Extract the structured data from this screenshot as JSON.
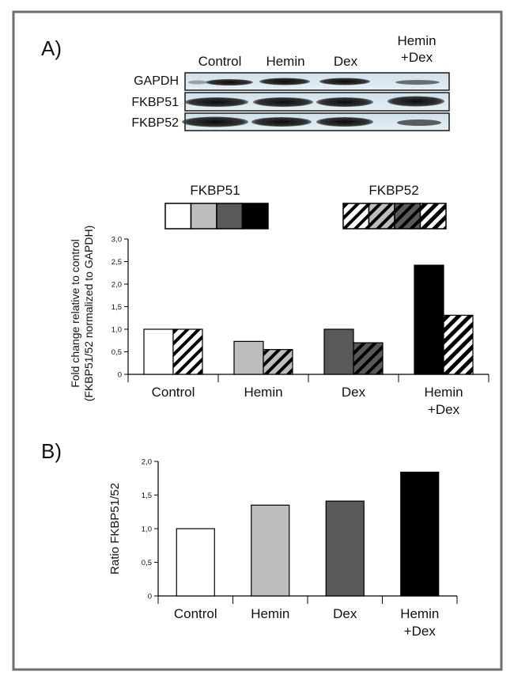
{
  "panels": {
    "a_label": "A)",
    "b_label": "B)"
  },
  "blot": {
    "lanes": [
      {
        "label": "Control"
      },
      {
        "label": "Hemin"
      },
      {
        "label": "Dex"
      },
      {
        "label_line1": "Hemin",
        "label_line2": "+Dex"
      }
    ],
    "rows": [
      "GAPDH",
      "FKBP51",
      "FKBP52"
    ]
  },
  "legend": {
    "fkbp51_title": "FKBP51",
    "fkbp52_title": "FKBP52",
    "colors": [
      "#ffffff",
      "#bdbdbd",
      "#595959",
      "#000000"
    ]
  },
  "chart_data": [
    {
      "type": "bar",
      "panel": "A",
      "categories": [
        "Control",
        "Hemin",
        "Dex",
        "Hemin +Dex"
      ],
      "category_lines": [
        [
          "Control"
        ],
        [
          "Hemin"
        ],
        [
          "Dex"
        ],
        [
          "Hemin",
          "+Dex"
        ]
      ],
      "series": [
        {
          "name": "FKBP51",
          "values": [
            1.0,
            0.73,
            1.0,
            2.42
          ],
          "pattern": "solid"
        },
        {
          "name": "FKBP52",
          "values": [
            1.0,
            0.55,
            0.7,
            1.31
          ],
          "pattern": "hatched"
        }
      ],
      "bar_colors": [
        "#ffffff",
        "#bdbdbd",
        "#595959",
        "#000000"
      ],
      "ylabel_line1": "Fold change relative to control",
      "ylabel_line2": "(FKBP51/52 normalized to GAPDH)",
      "ylim": [
        0,
        3.0
      ],
      "yticks": [
        "0",
        "0,5",
        "1,0",
        "1,5",
        "2,0",
        "2,5",
        "3,0"
      ],
      "ytick_values": [
        0,
        0.5,
        1.0,
        1.5,
        2.0,
        2.5,
        3.0
      ]
    },
    {
      "type": "bar",
      "panel": "B",
      "categories": [
        "Control",
        "Hemin",
        "Dex",
        "Hemin +Dex"
      ],
      "category_lines": [
        [
          "Control"
        ],
        [
          "Hemin"
        ],
        [
          "Dex"
        ],
        [
          "Hemin",
          "+Dex"
        ]
      ],
      "series": [
        {
          "name": "Ratio FKBP51/52",
          "values": [
            1.0,
            1.35,
            1.41,
            1.84
          ]
        }
      ],
      "bar_colors": [
        "#ffffff",
        "#bdbdbd",
        "#595959",
        "#000000"
      ],
      "ylabel": "Ratio FKBP51/52",
      "ylim": [
        0,
        2.0
      ],
      "yticks": [
        "0",
        "0,5",
        "1,0",
        "1,5",
        "2,0"
      ],
      "ytick_values": [
        0,
        0.5,
        1.0,
        1.5,
        2.0
      ]
    }
  ]
}
